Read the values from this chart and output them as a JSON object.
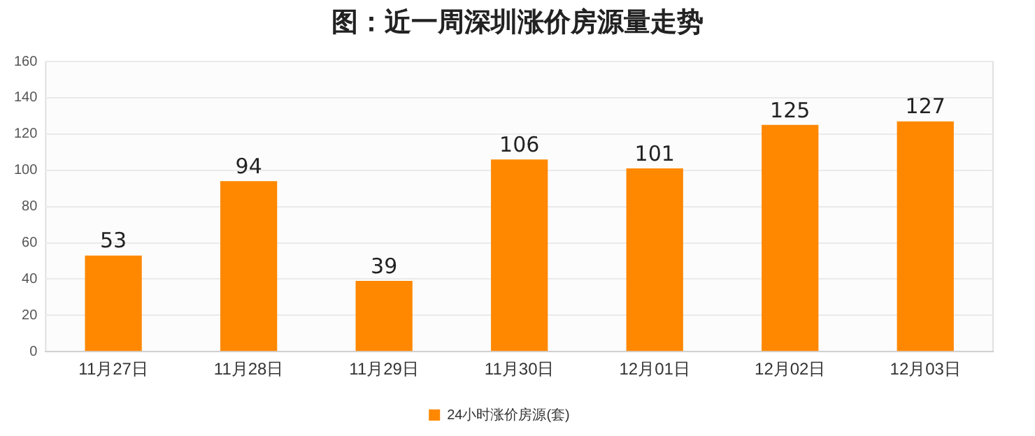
{
  "chart_data": {
    "type": "bar",
    "title": "图：近一周深圳涨价房源量走势",
    "categories": [
      "11月27日",
      "11月28日",
      "11月29日",
      "11月30日",
      "12月01日",
      "12月02日",
      "12月03日"
    ],
    "series": [
      {
        "name": "24小时涨价房源(套)",
        "color": "#ff8800",
        "values": [
          53,
          94,
          39,
          106,
          101,
          125,
          127
        ]
      }
    ],
    "ylim": [
      0,
      160
    ],
    "yticks": [
      0,
      20,
      40,
      60,
      80,
      100,
      120,
      140,
      160
    ],
    "grid": "y",
    "legend": "bottom",
    "data_labels": true
  }
}
